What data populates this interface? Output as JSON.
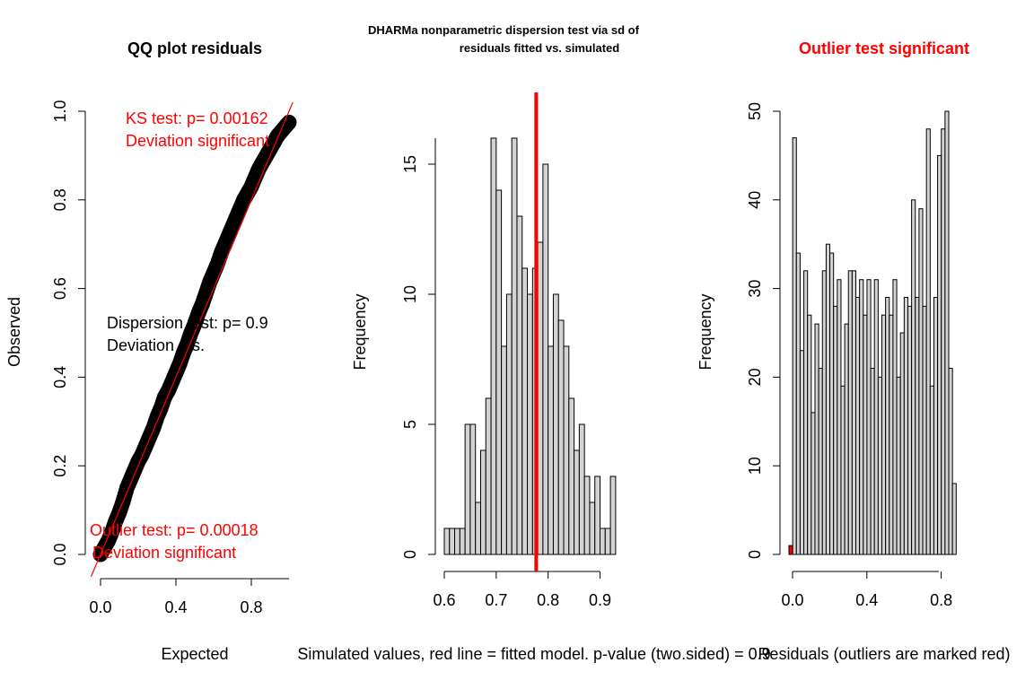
{
  "chart_data": [
    {
      "type": "scatter",
      "title": "QQ plot residuals",
      "title_color": "#000000",
      "xlabel": "Expected",
      "ylabel": "Observed",
      "xlim": [
        0,
        1
      ],
      "ylim": [
        0,
        1
      ],
      "xticks": [
        "0.0",
        "0.4",
        "0.8"
      ],
      "xtick_values": [
        0,
        0.4,
        0.8
      ],
      "yticks": [
        "0.0",
        "0.2",
        "0.4",
        "0.6",
        "0.8",
        "1.0"
      ],
      "ytick_values": [
        0,
        0.2,
        0.4,
        0.6,
        0.8,
        1.0
      ],
      "point_color": "#000000",
      "reference_line": {
        "intercept": 0,
        "slope": 1,
        "color": "#ff0000"
      },
      "points": [
        [
          0.0,
          0.0
        ],
        [
          0.02,
          0.015
        ],
        [
          0.04,
          0.03
        ],
        [
          0.06,
          0.05
        ],
        [
          0.08,
          0.075
        ],
        [
          0.1,
          0.095
        ],
        [
          0.12,
          0.12
        ],
        [
          0.14,
          0.15
        ],
        [
          0.16,
          0.17
        ],
        [
          0.18,
          0.19
        ],
        [
          0.2,
          0.21
        ],
        [
          0.22,
          0.225
        ],
        [
          0.24,
          0.245
        ],
        [
          0.26,
          0.265
        ],
        [
          0.28,
          0.285
        ],
        [
          0.3,
          0.31
        ],
        [
          0.32,
          0.33
        ],
        [
          0.34,
          0.355
        ],
        [
          0.36,
          0.37
        ],
        [
          0.38,
          0.39
        ],
        [
          0.4,
          0.41
        ],
        [
          0.42,
          0.43
        ],
        [
          0.44,
          0.455
        ],
        [
          0.46,
          0.475
        ],
        [
          0.48,
          0.5
        ],
        [
          0.5,
          0.52
        ],
        [
          0.52,
          0.545
        ],
        [
          0.54,
          0.565
        ],
        [
          0.56,
          0.59
        ],
        [
          0.58,
          0.615
        ],
        [
          0.6,
          0.635
        ],
        [
          0.62,
          0.655
        ],
        [
          0.64,
          0.68
        ],
        [
          0.66,
          0.7
        ],
        [
          0.68,
          0.72
        ],
        [
          0.7,
          0.74
        ],
        [
          0.72,
          0.76
        ],
        [
          0.74,
          0.78
        ],
        [
          0.76,
          0.8
        ],
        [
          0.78,
          0.815
        ],
        [
          0.8,
          0.83
        ],
        [
          0.82,
          0.85
        ],
        [
          0.84,
          0.87
        ],
        [
          0.86,
          0.885
        ],
        [
          0.88,
          0.9
        ],
        [
          0.9,
          0.915
        ],
        [
          0.92,
          0.93
        ],
        [
          0.94,
          0.945
        ],
        [
          0.96,
          0.955
        ],
        [
          0.98,
          0.965
        ],
        [
          1.0,
          0.975
        ]
      ],
      "annotations": [
        {
          "text": "KS test: p= 0.00162",
          "color": "#ff0000"
        },
        {
          "text": "Deviation  significant",
          "color": "#ff0000"
        },
        {
          "text": "Dispersion test: p= 0.9",
          "color": "#000000"
        },
        {
          "text": "Deviation n.s.",
          "color": "#000000"
        },
        {
          "text": "Outlier test: p= 0.00018",
          "color": "#ff0000"
        },
        {
          "text": "Deviation  significant",
          "color": "#ff0000"
        }
      ]
    },
    {
      "type": "bar",
      "title": "DHARMa nonparametric dispersion test via sd of residuals fitted vs. simulated",
      "title_lines": [
        "DHARMa nonparametric dispersion test via sd of",
        "residuals fitted vs. simulated"
      ],
      "xlabel": "Simulated values, red line = fitted model. p-value (two.sided) = 0.9",
      "ylabel": "Frequency",
      "xlim": [
        0.6,
        0.97
      ],
      "ylim": [
        0,
        16
      ],
      "xticks": [
        "0.6",
        "0.7",
        "0.8",
        "0.9"
      ],
      "xtick_values": [
        0.6,
        0.7,
        0.8,
        0.9
      ],
      "yticks": [
        "0",
        "5",
        "10",
        "15"
      ],
      "ytick_values": [
        0,
        5,
        10,
        15
      ],
      "bin_start": 0.6,
      "bin_width": 0.01,
      "bar_color": "#d3d3d3",
      "values": [
        1,
        1,
        1,
        1,
        5,
        5,
        2,
        4,
        6,
        16,
        14,
        8,
        10,
        16,
        13,
        11,
        10,
        11,
        12,
        15,
        8,
        10,
        9,
        8,
        6,
        4,
        5,
        3,
        2,
        3,
        1,
        1,
        3
      ],
      "observed_line": {
        "x": 0.777,
        "color": "#ff0000"
      }
    },
    {
      "type": "bar",
      "title": "Outlier test significant",
      "title_color": "#ff0000",
      "xlabel": "Residuals (outliers are marked red)",
      "ylabel": "Frequency",
      "xlim": [
        0,
        1
      ],
      "ylim": [
        0,
        50
      ],
      "xticks": [
        "0.0",
        "0.4",
        "0.8"
      ],
      "xtick_values": [
        0,
        0.4,
        0.8
      ],
      "yticks": [
        "0",
        "10",
        "20",
        "30",
        "40",
        "50"
      ],
      "ytick_values": [
        0,
        10,
        20,
        30,
        40,
        50
      ],
      "bin_start": 0.0,
      "bin_width": 0.02,
      "bar_color": "#d3d3d3",
      "outlier_color": "#ff0000",
      "outlier_bins": [
        0
      ],
      "values": [
        1,
        47,
        34,
        23,
        32,
        27,
        16,
        26,
        21,
        32,
        35,
        34,
        28,
        31,
        19,
        26,
        32,
        32,
        29,
        31,
        27,
        31,
        21,
        31,
        20,
        27,
        29,
        27,
        31,
        20,
        25,
        29,
        28,
        40,
        29,
        39,
        28,
        48,
        19,
        29,
        45,
        48,
        50,
        21,
        8
      ]
    }
  ]
}
